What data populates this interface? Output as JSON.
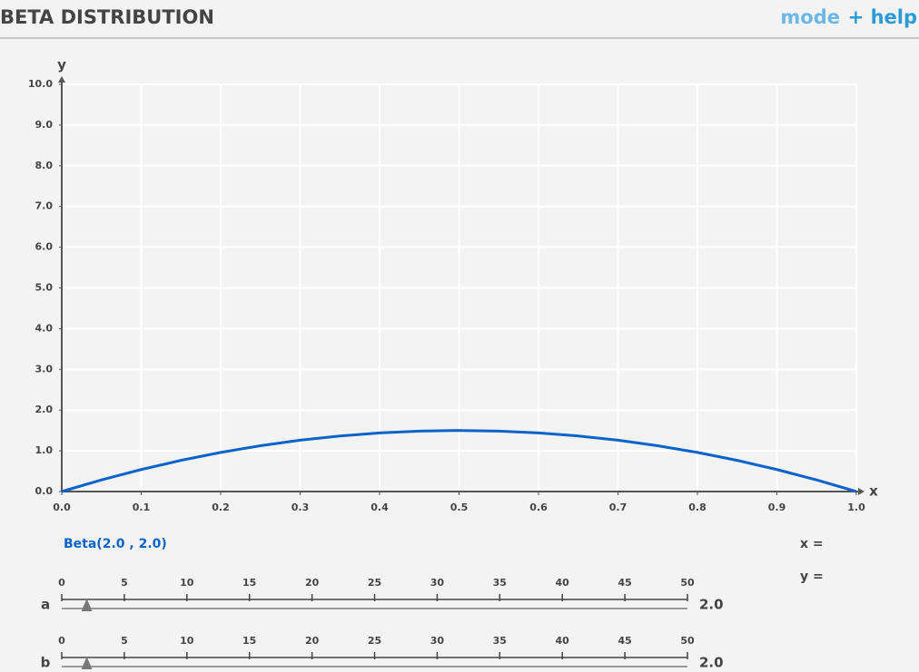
{
  "header": {
    "title": "BETA DISTRIBUTION",
    "mode": "mode",
    "help": "+ help"
  },
  "chart_data": {
    "type": "line",
    "x_label": "x",
    "y_label": "y",
    "x": [
      0,
      0.05,
      0.1,
      0.15,
      0.2,
      0.25,
      0.3,
      0.35,
      0.4,
      0.45,
      0.5,
      0.55,
      0.6,
      0.65,
      0.7,
      0.75,
      0.8,
      0.85,
      0.9,
      0.95,
      1
    ],
    "series": [
      {
        "name": "Beta(2.0 , 2.0)",
        "color": "#0b63c9",
        "values": [
          0,
          0.285,
          0.54,
          0.765,
          0.96,
          1.125,
          1.26,
          1.365,
          1.44,
          1.485,
          1.5,
          1.485,
          1.44,
          1.365,
          1.26,
          1.125,
          0.96,
          0.765,
          0.54,
          0.285,
          0
        ]
      }
    ],
    "xlim": [
      0,
      1
    ],
    "ylim": [
      0,
      10
    ],
    "xticks": [
      {
        "value": 0,
        "label": "0.0"
      },
      0.1,
      0.2,
      0.3,
      0.4,
      0.5,
      0.6,
      0.7,
      0.8,
      0.9,
      {
        "value": 1,
        "label": "1.0"
      }
    ],
    "yticks": [
      {
        "value": 0,
        "label": "0.0"
      },
      {
        "value": 1,
        "label": "1.0"
      },
      {
        "value": 2,
        "label": "2.0"
      },
      {
        "value": 3,
        "label": "3.0"
      },
      {
        "value": 4,
        "label": "4.0"
      },
      {
        "value": 5,
        "label": "5.0"
      },
      {
        "value": 6,
        "label": "6.0"
      },
      {
        "value": 7,
        "label": "7.0"
      },
      {
        "value": 8,
        "label": "8.0"
      },
      {
        "value": 9,
        "label": "9.0"
      },
      {
        "value": 10,
        "label": "10.0"
      }
    ],
    "grid": true
  },
  "readout": {
    "x": "x =",
    "y": "y ="
  },
  "sliders": [
    {
      "name": "a",
      "value": {
        "value": 2,
        "label": "2.0"
      },
      "lim": [
        0,
        50
      ],
      "ticks": [
        0,
        5,
        10,
        15,
        20,
        25,
        30,
        35,
        40,
        45,
        50
      ]
    },
    {
      "name": "b",
      "value": {
        "value": 2,
        "label": "2.0"
      },
      "lim": [
        0,
        50
      ],
      "ticks": [
        0,
        5,
        10,
        15,
        20,
        25,
        30,
        35,
        40,
        45,
        50
      ]
    }
  ]
}
